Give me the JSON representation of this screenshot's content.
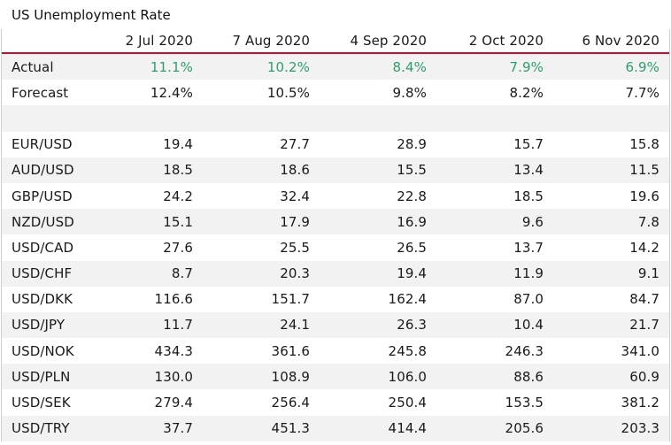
{
  "title": "US Unemployment Rate",
  "colors": {
    "actual_value": "#2e9e6b",
    "header_rule": "#c8102e",
    "stripe": "#f2f2f2"
  },
  "columns": [
    "",
    "2 Jul 2020",
    "7 Aug 2020",
    "4 Sep 2020",
    "2 Oct 2020",
    "6 Nov 2020"
  ],
  "summary_rows": [
    {
      "label": "Actual",
      "values": [
        "11.1%",
        "10.2%",
        "8.4%",
        "7.9%",
        "6.9%"
      ]
    },
    {
      "label": "Forecast",
      "values": [
        "12.4%",
        "10.5%",
        "9.8%",
        "8.2%",
        "7.7%"
      ]
    }
  ],
  "pair_rows": [
    {
      "label": "EUR/USD",
      "values": [
        "19.4",
        "27.7",
        "28.9",
        "15.7",
        "15.8"
      ]
    },
    {
      "label": "AUD/USD",
      "values": [
        "18.5",
        "18.6",
        "15.5",
        "13.4",
        "11.5"
      ]
    },
    {
      "label": "GBP/USD",
      "values": [
        "24.2",
        "32.4",
        "22.8",
        "18.5",
        "19.6"
      ]
    },
    {
      "label": "NZD/USD",
      "values": [
        "15.1",
        "17.9",
        "16.9",
        "9.6",
        "7.8"
      ]
    },
    {
      "label": "USD/CAD",
      "values": [
        "27.6",
        "25.5",
        "26.5",
        "13.7",
        "14.2"
      ]
    },
    {
      "label": "USD/CHF",
      "values": [
        "8.7",
        "20.3",
        "19.4",
        "11.9",
        "9.1"
      ]
    },
    {
      "label": "USD/DKK",
      "values": [
        "116.6",
        "151.7",
        "162.4",
        "87.0",
        "84.7"
      ]
    },
    {
      "label": "USD/JPY",
      "values": [
        "11.7",
        "24.1",
        "26.3",
        "10.4",
        "21.7"
      ]
    },
    {
      "label": "USD/NOK",
      "values": [
        "434.3",
        "361.6",
        "245.8",
        "246.3",
        "341.0"
      ]
    },
    {
      "label": "USD/PLN",
      "values": [
        "130.0",
        "108.9",
        "106.0",
        "88.6",
        "60.9"
      ]
    },
    {
      "label": "USD/SEK",
      "values": [
        "279.4",
        "256.4",
        "250.4",
        "153.5",
        "381.2"
      ]
    },
    {
      "label": "USD/TRY",
      "values": [
        "37.7",
        "451.3",
        "414.4",
        "205.6",
        "203.3"
      ]
    }
  ]
}
